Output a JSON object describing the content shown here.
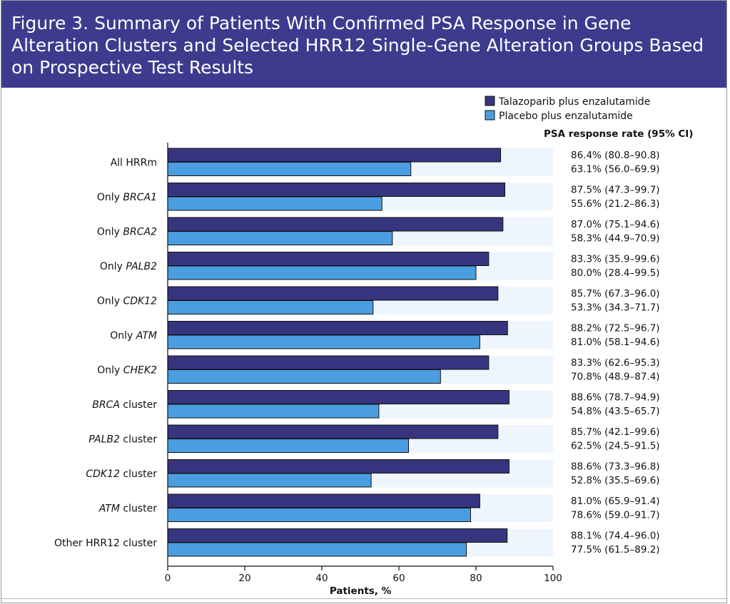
{
  "figure_title": "Figure 3. Summary of Patients With Confirmed PSA Response in Gene Alteration Clusters and Selected HRR12 Single-Gene Alteration Groups Based on Prospective Test Results",
  "colors": {
    "header_bg": "#3d3b8e",
    "series_1": "#37357f",
    "series_2": "#4a9ee0",
    "row_band": "#eef5fc"
  },
  "chart_data": {
    "type": "bar",
    "orientation": "horizontal",
    "title": "Figure 3. Summary of Patients With Confirmed PSA Response in Gene Alteration Clusters and Selected HRR12 Single-Gene Alteration Groups Based on Prospective Test Results",
    "xlabel": "Patients, %",
    "ylabel": "",
    "xlim": [
      0,
      100
    ],
    "xticks": [
      0,
      20,
      40,
      60,
      80,
      100
    ],
    "grid": false,
    "legend_position": "top-right",
    "annotation_header": "PSA response rate (95% CI)",
    "categories": [
      {
        "prefix": "All HRRm",
        "italic": "",
        "suffix": ""
      },
      {
        "prefix": "Only ",
        "italic": "BRCA1",
        "suffix": ""
      },
      {
        "prefix": "Only ",
        "italic": "BRCA2",
        "suffix": ""
      },
      {
        "prefix": "Only ",
        "italic": "PALB2",
        "suffix": ""
      },
      {
        "prefix": "Only ",
        "italic": "CDK12",
        "suffix": ""
      },
      {
        "prefix": "Only ",
        "italic": "ATM",
        "suffix": ""
      },
      {
        "prefix": "Only ",
        "italic": "CHEK2",
        "suffix": ""
      },
      {
        "prefix": "",
        "italic": "BRCA",
        "suffix": " cluster"
      },
      {
        "prefix": "",
        "italic": "PALB2",
        "suffix": " cluster"
      },
      {
        "prefix": "",
        "italic": "CDK12",
        "suffix": " cluster"
      },
      {
        "prefix": "",
        "italic": "ATM",
        "suffix": " cluster"
      },
      {
        "prefix": "Other HRR12 cluster",
        "italic": "",
        "suffix": ""
      }
    ],
    "series": [
      {
        "name": "Talazoparib plus enzalutamide",
        "color": "#37357f",
        "values": [
          86.4,
          87.5,
          87.0,
          83.3,
          85.7,
          88.2,
          83.3,
          88.6,
          85.7,
          88.6,
          81.0,
          88.1
        ],
        "labels": [
          "86.4% (80.8–90.8)",
          "87.5% (47.3–99.7)",
          "87.0% (75.1–94.6)",
          "83.3% (35.9–99.6)",
          "85.7% (67.3–96.0)",
          "88.2% (72.5–96.7)",
          "83.3% (62.6–95.3)",
          "88.6% (78.7–94.9)",
          "85.7% (42.1–99.6)",
          "88.6% (73.3–96.8)",
          "81.0% (65.9–91.4)",
          "88.1% (74.4–96.0)"
        ]
      },
      {
        "name": "Placebo plus enzalutamide",
        "color": "#4a9ee0",
        "values": [
          63.1,
          55.6,
          58.3,
          80.0,
          53.3,
          81.0,
          70.8,
          54.8,
          62.5,
          52.8,
          78.6,
          77.5
        ],
        "labels": [
          "63.1% (56.0–69.9)",
          "55.6% (21.2–86.3)",
          "58.3% (44.9–70.9)",
          "80.0% (28.4–99.5)",
          "53.3% (34.3–71.7)",
          "81.0% (58.1–94.6)",
          "70.8% (48.9–87.4)",
          "54.8% (43.5–65.7)",
          "62.5% (24.5–91.5)",
          "52.8% (35.5–69.6)",
          "78.6% (59.0–91.7)",
          "77.5% (61.5–89.2)"
        ]
      }
    ]
  }
}
